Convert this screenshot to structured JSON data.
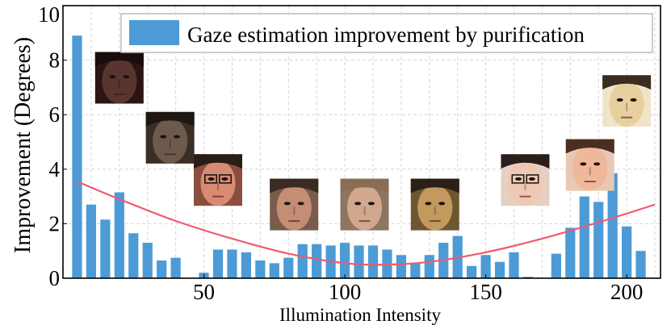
{
  "chart_data": {
    "type": "bar",
    "title": "",
    "xlabel": "Illumination Intensity",
    "ylabel": "Improvement (Degrees)",
    "xlim": [
      0,
      212
    ],
    "ylim": [
      0,
      10
    ],
    "xticks": [
      50,
      100,
      150,
      200
    ],
    "yticks": [
      0,
      2,
      4,
      6,
      8,
      10
    ],
    "grid": true,
    "legend": {
      "position": "top-right",
      "label": "Gaze estimation improvement by purification"
    },
    "bar_color": "#4c9bd6",
    "curve_color": "#f05a6e",
    "x": [
      5,
      10,
      15,
      20,
      25,
      30,
      35,
      40,
      45,
      50,
      55,
      60,
      65,
      70,
      75,
      80,
      85,
      90,
      95,
      100,
      105,
      110,
      115,
      120,
      125,
      130,
      135,
      140,
      145,
      150,
      155,
      160,
      165,
      170,
      175,
      180,
      185,
      190,
      195,
      200,
      205,
      210
    ],
    "values": [
      8.9,
      2.7,
      2.15,
      3.15,
      1.65,
      1.3,
      0.65,
      0.75,
      0.0,
      0.2,
      1.05,
      1.05,
      0.95,
      0.65,
      0.55,
      0.75,
      1.25,
      1.25,
      1.2,
      1.3,
      1.2,
      1.2,
      1.05,
      0.85,
      0.55,
      0.85,
      1.3,
      1.55,
      0.45,
      0.85,
      0.6,
      0.95,
      0.05,
      0.0,
      0.9,
      1.85,
      3.0,
      2.8,
      3.85,
      1.9,
      1.0,
      0.0
    ],
    "trend_curve": {
      "x": [
        5,
        20,
        40,
        60,
        80,
        100,
        115,
        130,
        150,
        170,
        190,
        210
      ],
      "y": [
        3.55,
        2.9,
        2.1,
        1.45,
        0.9,
        0.55,
        0.5,
        0.6,
        0.95,
        1.45,
        2.05,
        2.7
      ]
    },
    "face_thumbnails": [
      {
        "x_center": 20,
        "y_top": 8.3,
        "tone": "dark",
        "skin": "#5a3430",
        "hair": "#1a0c0c",
        "bg": "#2a1414"
      },
      {
        "x_center": 38,
        "y_top": 6.1,
        "tone": "dim",
        "skin": "#6e5a4c",
        "hair": "#1e1612",
        "bg": "#3a2e26"
      },
      {
        "x_center": 55,
        "y_top": 4.55,
        "tone": "warm",
        "skin": "#d98a72",
        "hair": "#2a1c18",
        "bg": "#8a4e3e",
        "glasses": true
      },
      {
        "x_center": 82,
        "y_top": 3.65,
        "tone": "mid",
        "skin": "#c58d74",
        "hair": "#3a2a22",
        "bg": "#7a5c4e"
      },
      {
        "x_center": 107,
        "y_top": 3.65,
        "tone": "mid",
        "skin": "#d1a78e",
        "hair": "#8a6e54",
        "bg": "#8e7462"
      },
      {
        "x_center": 132,
        "y_top": 3.65,
        "tone": "bright",
        "skin": "#c4995e",
        "hair": "#2a2018",
        "bg": "#6e5632"
      },
      {
        "x_center": 164,
        "y_top": 4.55,
        "tone": "bright",
        "skin": "#efc8b4",
        "hair": "#2a1e1a",
        "bg": "#e6d0c4",
        "glasses": true
      },
      {
        "x_center": 187,
        "y_top": 5.1,
        "tone": "bright",
        "skin": "#f0b89a",
        "hair": "#4a2e22",
        "bg": "#e8c8b4"
      },
      {
        "x_center": 200,
        "y_top": 7.45,
        "tone": "very-bright",
        "skin": "#e8cfa0",
        "hair": "#3a2c1e",
        "bg": "#f0e4c8"
      }
    ]
  }
}
